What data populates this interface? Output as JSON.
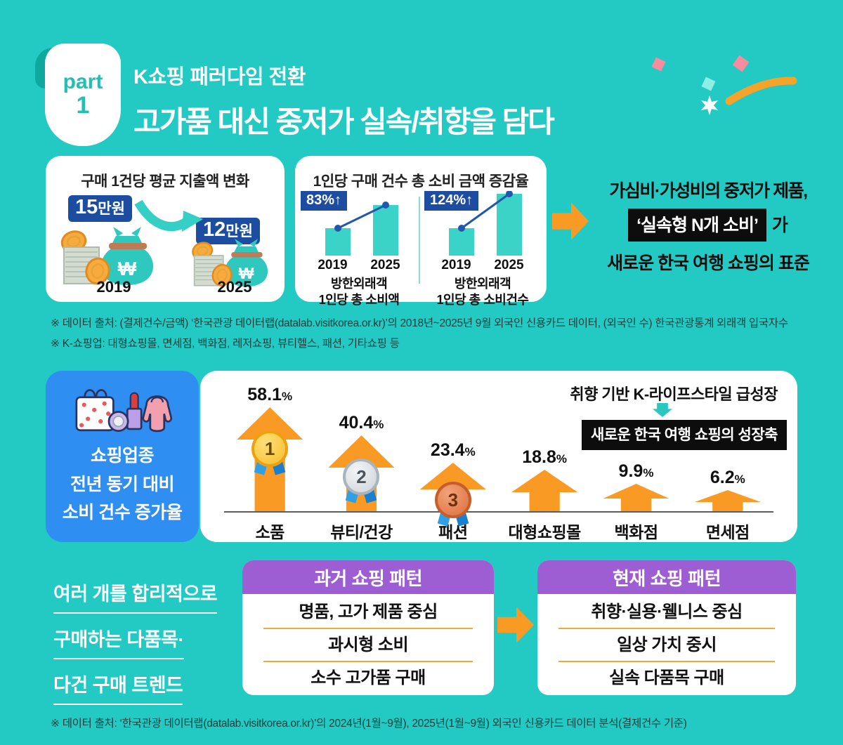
{
  "colors": {
    "background": "#22cac3",
    "accent_orange": "#f89a24",
    "navy_badge": "#1d4da0",
    "bar_teal": "#3bd2c8",
    "blue_panel": "#2f8ef1",
    "purple_header": "#9e5ed3",
    "black_box": "#0d0d0d"
  },
  "header": {
    "badge_line1": "part",
    "badge_line2": "1",
    "subtitle": "K쇼핑 패러다임 전환",
    "title": "고가품 대신 중저가 실속/취향을 담다"
  },
  "spending_card": {
    "title": "구매 1건당 평균 지출액 변화",
    "before_value": "15",
    "before_unit": "만원",
    "before_year": "2019",
    "after_value": "12",
    "after_unit": "만원",
    "after_year": "2025"
  },
  "growth_card": {
    "title": "1인당 구매 건수 총 소비 금액 증감율",
    "charts": [
      {
        "change_label": "83%↑",
        "year_left": "2019",
        "year_right": "2025",
        "caption_line1": "방한외래객",
        "caption_line2": "1인당 총 소비액"
      },
      {
        "change_label": "124%↑",
        "year_left": "2019",
        "year_right": "2025",
        "caption_line1": "방한외래객",
        "caption_line2": "1인당 총 소비건수"
      }
    ]
  },
  "takeaway": {
    "line1": "가심비·가성비의 중저가 제품,",
    "highlight": "‘실속형 N개 소비’",
    "suffix": "가",
    "line3": "새로운 한국 여행 쇼핑의 표준"
  },
  "notes_top": {
    "line1": "※ 데이터 출처: (결제건수/금액) ‘한국관광 데이터랩(datalab.visitkorea.or.kr)’의 2018년~2025년 9월 외국인 신용카드 데이터, (외국인 수) 한국관광통계 외래객 입국자수",
    "line2": "※ K-쇼핑업: 대형쇼핑몰, 면세점, 백화점, 레저쇼핑, 뷰티헬스, 패션, 기타쇼핑 등"
  },
  "category_section": {
    "panel_line1": "쇼핑업종",
    "panel_line2": "전년 동기 대비",
    "panel_line3": "소비 건수 증가율",
    "annotation": "취향 기반 K-라이프스타일 급성장",
    "annotation_box": "새로운 한국 여행 쇼핑의 성장축"
  },
  "patterns_section": {
    "left_line1": "여러 개를 합리적으로",
    "left_line2": "구매하는 다품목·",
    "left_line3": "다건 구매 트렌드",
    "past_title": "과거 쇼핑 패턴",
    "past_items": [
      "명품, 고가 제품 중심",
      "과시형 소비",
      "소수 고가품 구매"
    ],
    "present_title": "현재 쇼핑 패턴",
    "present_items": [
      "취향·실용·웰니스 중심",
      "일상 가치 중시",
      "실속 다품목 구매"
    ]
  },
  "note_bottom": "※ 데이터 출처: ‘한국관광 데이터랩(datalab.visitkorea.or.kr)’의 2024년(1월~9월), 2025년(1월~9월) 외국인 신용카드 데이터 분석(결제건수 기준)",
  "chart_data": [
    {
      "type": "pictorial",
      "title": "구매 1건당 평균 지출액 변화",
      "categories": [
        "2019",
        "2025"
      ],
      "values": [
        15,
        12
      ],
      "unit": "만원",
      "trend": "decrease"
    },
    {
      "type": "bar",
      "title": "1인당 구매 건수 총 소비 금액 증감율",
      "categories": [
        "2019",
        "2025"
      ],
      "series": [
        {
          "name": "방한외래객 1인당 총 소비액",
          "values": [
            100,
            183
          ],
          "change_label": "83%↑"
        },
        {
          "name": "방한외래객 1인당 총 소비건수",
          "values": [
            100,
            224
          ],
          "change_label": "124%↑"
        }
      ],
      "value_basis": "index estimated from bar heights, 2019=100",
      "legend_position": "none",
      "grid": false
    },
    {
      "type": "bar",
      "title": "쇼핑업종 전년 동기 대비 소비 건수 증가율",
      "categories": [
        "소품",
        "뷰티/건강",
        "패션",
        "대형쇼핑몰",
        "백화점",
        "면세점"
      ],
      "values": [
        58.1,
        40.4,
        23.4,
        18.8,
        9.9,
        6.2
      ],
      "unit": "%",
      "rank_medals": [
        1,
        2,
        3,
        null,
        null,
        null
      ],
      "ylim": [
        0,
        60
      ],
      "bar_style": "orange-up-arrow",
      "grid": false
    }
  ]
}
